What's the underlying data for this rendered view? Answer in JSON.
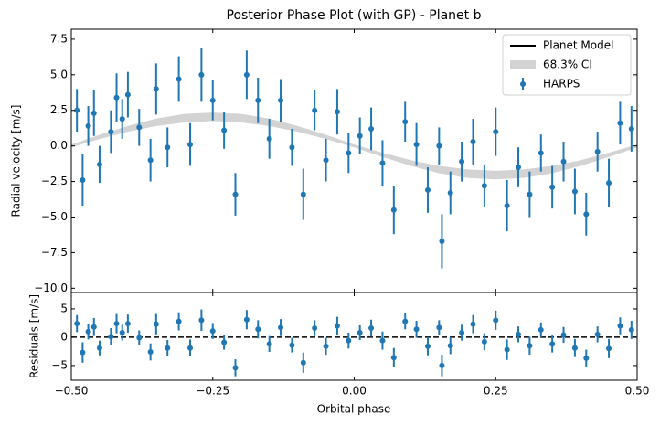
{
  "chart_data": [
    {
      "type": "errorbar",
      "title": "Posterior Phase Plot (with GP) - Planet b",
      "ylabel": "Radial velocity [m/s]",
      "xlim": [
        -0.5,
        0.5
      ],
      "xticks": [
        {
          "value": -0.5,
          "label": "−0.50"
        },
        {
          "value": -0.25,
          "label": "−0.25"
        },
        {
          "value": 0,
          "label": "0.00"
        },
        {
          "value": 0.25,
          "label": "0.25"
        },
        {
          "value": 0.5,
          "label": "0.50"
        }
      ],
      "ylim": [
        -10.3,
        8.2
      ],
      "yticks": [
        {
          "value": -10,
          "label": "−10.0"
        },
        {
          "value": -7.5,
          "label": "−7.5"
        },
        {
          "value": -5,
          "label": "−5.0"
        },
        {
          "value": -2.5,
          "label": "−2.5"
        },
        {
          "value": 0,
          "label": "0.0"
        },
        {
          "value": 2.5,
          "label": "2.5"
        },
        {
          "value": 5,
          "label": "5.0"
        },
        {
          "value": 7.5,
          "label": "7.5"
        }
      ],
      "legend": "upper right",
      "series": [
        {
          "name": "Planet Model",
          "color": "#000000",
          "kind": "line",
          "x": [
            -0.5,
            -0.45,
            -0.4,
            -0.35,
            -0.3,
            -0.25,
            -0.2,
            -0.15,
            -0.1,
            -0.05,
            0,
            0.05,
            0.1,
            0.15,
            0.2,
            0.25,
            0.3,
            0.35,
            0.4,
            0.45,
            0.5
          ],
          "values": [
            0,
            0.63,
            1.2,
            1.66,
            1.95,
            2.05,
            1.95,
            1.66,
            1.2,
            0.63,
            0,
            -0.63,
            -1.2,
            -1.66,
            -1.95,
            -2.05,
            -1.95,
            -1.66,
            -1.2,
            -0.63,
            0
          ]
        },
        {
          "name": "68.3% CI",
          "color": "#d3d3d3",
          "kind": "band",
          "x": [
            -0.5,
            -0.45,
            -0.4,
            -0.35,
            -0.3,
            -0.25,
            -0.2,
            -0.15,
            -0.1,
            -0.05,
            0,
            0.05,
            0.1,
            0.15,
            0.2,
            0.25,
            0.3,
            0.35,
            0.4,
            0.45,
            0.5
          ],
          "lower": [
            -0.1,
            0.48,
            1.0,
            1.4,
            1.65,
            1.75,
            1.65,
            1.4,
            1.0,
            0.48,
            -0.1,
            -0.78,
            -1.4,
            -1.92,
            -2.25,
            -2.35,
            -2.25,
            -1.92,
            -1.4,
            -0.78,
            -0.1
          ],
          "upper": [
            0.1,
            0.78,
            1.4,
            1.92,
            2.25,
            2.35,
            2.25,
            1.92,
            1.4,
            0.78,
            0.1,
            -0.48,
            -1.0,
            -1.4,
            -1.65,
            -1.75,
            -1.65,
            -1.4,
            -1.0,
            -0.48,
            0.1
          ]
        },
        {
          "name": "HARPS",
          "color": "#1f77b4",
          "kind": "points",
          "x": [
            -0.49,
            -0.48,
            -0.47,
            -0.46,
            -0.45,
            -0.43,
            -0.42,
            -0.41,
            -0.4,
            -0.38,
            -0.36,
            -0.35,
            -0.33,
            -0.31,
            -0.29,
            -0.27,
            -0.25,
            -0.23,
            -0.21,
            -0.19,
            -0.17,
            -0.15,
            -0.13,
            -0.11,
            -0.09,
            -0.07,
            -0.05,
            -0.03,
            -0.01,
            0.01,
            0.03,
            0.05,
            0.07,
            0.09,
            0.11,
            0.13,
            0.15,
            0.155,
            0.17,
            0.19,
            0.21,
            0.23,
            0.25,
            0.27,
            0.29,
            0.31,
            0.33,
            0.35,
            0.37,
            0.39,
            0.41,
            0.43,
            0.45,
            0.47,
            0.49
          ],
          "values": [
            2.5,
            -2.4,
            1.4,
            2.3,
            -1.3,
            1.0,
            3.4,
            1.9,
            3.6,
            1.3,
            -1.0,
            4.0,
            -0.1,
            4.7,
            0.1,
            5.0,
            3.2,
            1.1,
            -3.4,
            5.0,
            3.2,
            0.5,
            3.2,
            -0.1,
            -3.4,
            2.5,
            -1.0,
            2.4,
            -0.5,
            0.7,
            1.2,
            -1.2,
            -4.5,
            1.7,
            0.1,
            -3.1,
            0.0,
            -6.7,
            -3.3,
            -1.1,
            0.3,
            -2.8,
            1.0,
            -4.2,
            -1.5,
            -3.4,
            -0.5,
            -2.9,
            -1.1,
            -3.2,
            -4.8,
            -0.4,
            -2.6,
            1.6,
            1.2
          ],
          "errors": [
            1.5,
            1.8,
            1.4,
            1.6,
            1.3,
            1.5,
            1.7,
            1.4,
            1.6,
            1.3,
            1.5,
            1.8,
            1.4,
            1.6,
            1.5,
            1.9,
            1.4,
            1.3,
            1.5,
            1.7,
            1.6,
            1.4,
            1.5,
            1.3,
            1.8,
            1.4,
            1.5,
            1.6,
            1.4,
            1.3,
            1.5,
            1.6,
            1.7,
            1.4,
            1.5,
            1.6,
            1.3,
            1.9,
            1.5,
            1.4,
            1.6,
            1.5,
            1.7,
            1.8,
            1.4,
            1.6,
            1.3,
            1.5,
            1.4,
            1.6,
            1.5,
            1.4,
            1.7,
            1.5,
            1.6
          ]
        }
      ]
    },
    {
      "type": "residuals",
      "ylabel": "Residuals [m/s]",
      "xlabel": "Orbital phase",
      "color": "#1f77b4",
      "xlim": [
        -0.5,
        0.5
      ],
      "xticks": [
        {
          "value": -0.5,
          "label": "−0.50"
        },
        {
          "value": -0.25,
          "label": "−0.25"
        },
        {
          "value": 0,
          "label": "0.00"
        },
        {
          "value": 0.25,
          "label": "0.25"
        },
        {
          "value": 0.5,
          "label": "0.50"
        }
      ],
      "ylim": [
        -7.6,
        7.9
      ],
      "yticks": [
        {
          "value": -5,
          "label": "−5"
        },
        0,
        5
      ],
      "x": [
        -0.49,
        -0.48,
        -0.47,
        -0.46,
        -0.45,
        -0.43,
        -0.42,
        -0.41,
        -0.4,
        -0.38,
        -0.36,
        -0.35,
        -0.33,
        -0.31,
        -0.29,
        -0.27,
        -0.25,
        -0.23,
        -0.21,
        -0.19,
        -0.17,
        -0.15,
        -0.13,
        -0.11,
        -0.09,
        -0.07,
        -0.05,
        -0.03,
        -0.01,
        0.01,
        0.03,
        0.05,
        0.07,
        0.09,
        0.11,
        0.13,
        0.15,
        0.155,
        0.17,
        0.19,
        0.21,
        0.23,
        0.25,
        0.27,
        0.29,
        0.31,
        0.33,
        0.35,
        0.37,
        0.39,
        0.41,
        0.43,
        0.45,
        0.47,
        0.49
      ],
      "values": [
        2.4,
        -2.7,
        1.0,
        1.8,
        -1.9,
        0.1,
        2.4,
        0.8,
        2.4,
        -0.1,
        -2.6,
        2.3,
        -1.9,
        2.8,
        -1.9,
        3.0,
        1.1,
        -0.9,
        -5.4,
        3.1,
        1.4,
        -1.2,
        1.7,
        -1.4,
        -4.5,
        1.6,
        -1.6,
        2.0,
        -0.6,
        0.8,
        1.6,
        -0.6,
        -3.6,
        2.8,
        1.4,
        -1.6,
        1.7,
        -5.0,
        -1.5,
        0.8,
        2.3,
        -0.8,
        3.0,
        -2.2,
        0.5,
        -1.5,
        1.3,
        -1.2,
        0.4,
        -1.9,
        -3.7,
        0.5,
        -2.0,
        2.0,
        1.3
      ],
      "errors": [
        1.5,
        1.8,
        1.4,
        1.6,
        1.3,
        1.5,
        1.7,
        1.4,
        1.6,
        1.3,
        1.5,
        1.8,
        1.4,
        1.6,
        1.5,
        1.9,
        1.4,
        1.3,
        1.5,
        1.7,
        1.6,
        1.4,
        1.5,
        1.3,
        1.8,
        1.4,
        1.5,
        1.6,
        1.4,
        1.3,
        1.5,
        1.6,
        1.7,
        1.4,
        1.5,
        1.6,
        1.3,
        1.9,
        1.5,
        1.4,
        1.6,
        1.5,
        1.7,
        1.8,
        1.4,
        1.6,
        1.3,
        1.5,
        1.4,
        1.6,
        1.5,
        1.4,
        1.7,
        1.5,
        1.6
      ]
    }
  ]
}
